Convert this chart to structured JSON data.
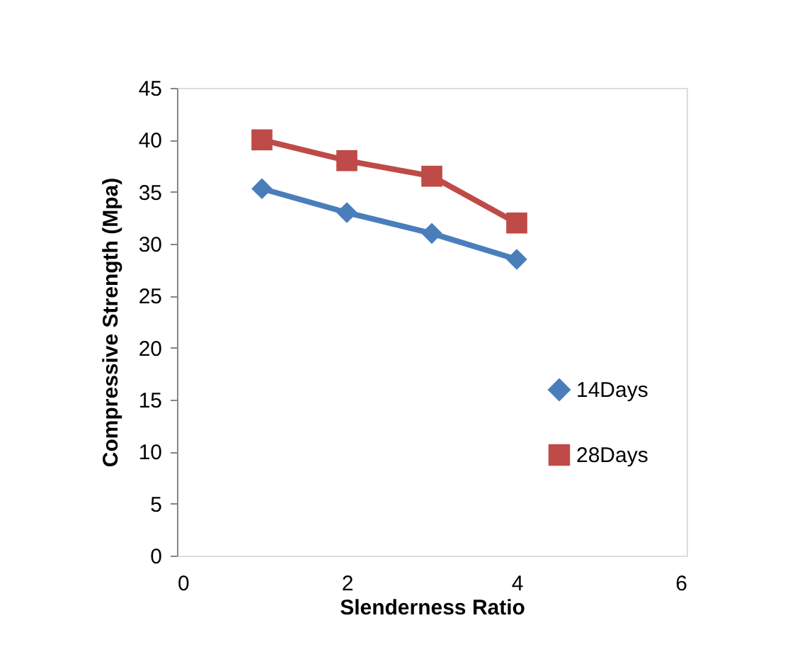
{
  "chart_data": {
    "type": "line",
    "xlabel": "Slenderness Ratio",
    "ylabel": "Compressive Strength (Mpa)",
    "x": [
      1,
      2,
      3,
      4
    ],
    "series": [
      {
        "name": "14Days",
        "color": "#4a7ebb",
        "marker": "diamond",
        "values": [
          35.3,
          33,
          31,
          28.5
        ]
      },
      {
        "name": "28Days",
        "color": "#be4b48",
        "marker": "square",
        "values": [
          40,
          38,
          36.5,
          32
        ]
      }
    ],
    "xlim": [
      0,
      6
    ],
    "xticks": [
      0,
      2,
      4,
      6
    ],
    "ylim": [
      0,
      45
    ],
    "yticks": [
      0,
      5,
      10,
      15,
      20,
      25,
      30,
      35,
      40,
      45
    ],
    "grid": false,
    "legend": "right",
    "line_style": "solid"
  }
}
